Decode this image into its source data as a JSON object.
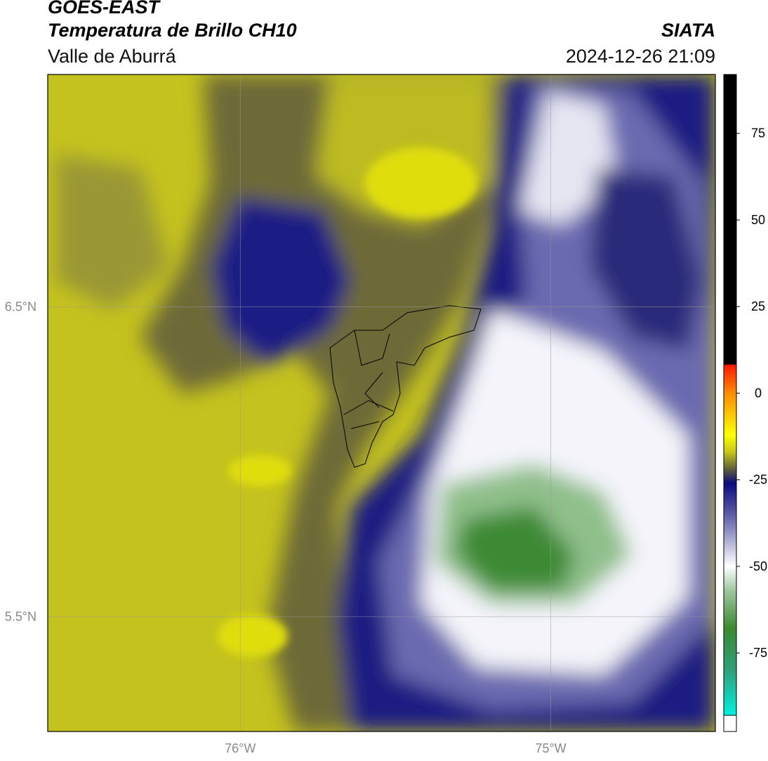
{
  "header": {
    "title": "GOES-EAST",
    "subtitle": "Temperatura de Brillo CH10",
    "region": "Valle de Aburrá",
    "source": "SIATA",
    "datetime": "2024-12-26 21:09"
  },
  "map": {
    "lon_range": [
      -76.62,
      -74.47
    ],
    "lat_range": [
      5.13,
      7.25
    ],
    "lon_ticks": [
      {
        "value": -76,
        "label": "76°W"
      },
      {
        "value": -75,
        "label": "75°W"
      }
    ],
    "lat_ticks": [
      {
        "value": 6.5,
        "label": "6.5°N"
      },
      {
        "value": 5.5,
        "label": "5.5°N"
      }
    ]
  },
  "colorbar": {
    "range": [
      -93,
      92
    ],
    "ticks": [
      75,
      50,
      25,
      0,
      -25,
      -50,
      -75
    ],
    "under_color": "#ffffff",
    "colormap": [
      {
        "value": 92,
        "color": "#000000"
      },
      {
        "value": 8.5,
        "color": "#000000"
      },
      {
        "value": 8,
        "color": "#ff1a00"
      },
      {
        "value": 0,
        "color": "#ff8c00"
      },
      {
        "value": -12,
        "color": "#ffff00"
      },
      {
        "value": -17,
        "color": "#c6c61e"
      },
      {
        "value": -22,
        "color": "#5e5e3a"
      },
      {
        "value": -26,
        "color": "#0a0a80"
      },
      {
        "value": -35,
        "color": "#5c5ca8"
      },
      {
        "value": -45,
        "color": "#c9c9e3"
      },
      {
        "value": -50,
        "color": "#ffffff"
      },
      {
        "value": -57,
        "color": "#9ec79e"
      },
      {
        "value": -68,
        "color": "#3a8a30"
      },
      {
        "value": -80,
        "color": "#2fa07a"
      },
      {
        "value": -93,
        "color": "#00f0e0"
      }
    ]
  }
}
